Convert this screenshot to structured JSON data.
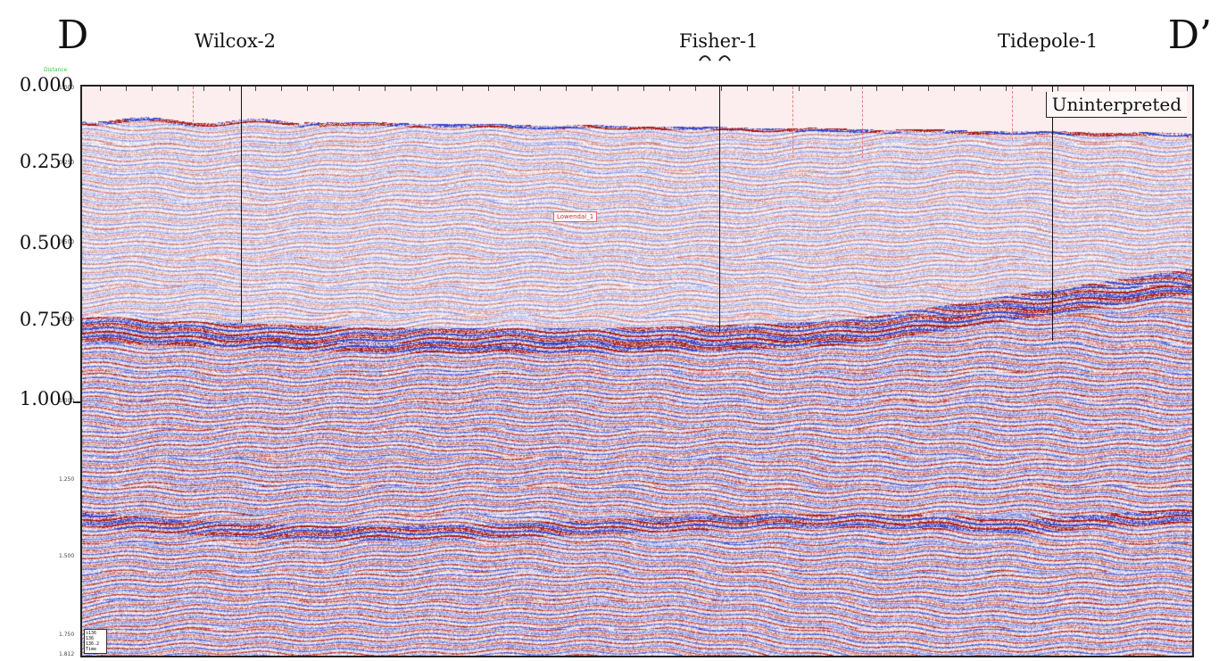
{
  "corners": {
    "left": "D",
    "right": "D’"
  },
  "wells": [
    {
      "name": "Wilcox-2"
    },
    {
      "name": "Fisher-1"
    },
    {
      "name": "Tidepole-1"
    }
  ],
  "distance_label": "Distance",
  "time_axis": {
    "major": [
      "0.000",
      "0.250",
      "0.500",
      "0.750",
      "1.000"
    ],
    "minor": [
      "1.000",
      "0.250",
      "0.500",
      "0.750",
      "1.000",
      "1.250",
      "1.500",
      "1.750",
      "1.812"
    ]
  },
  "panel_label": "Uninterpreted",
  "marker_label": "Lowendal_1",
  "info_box": [
    "s136",
    "136",
    "136.2",
    "Time"
  ],
  "colors": {
    "positive": "#b01818",
    "negative": "#3a45b8",
    "background": "#fbf2f2",
    "seafloor_water": "#fdeeee"
  }
}
